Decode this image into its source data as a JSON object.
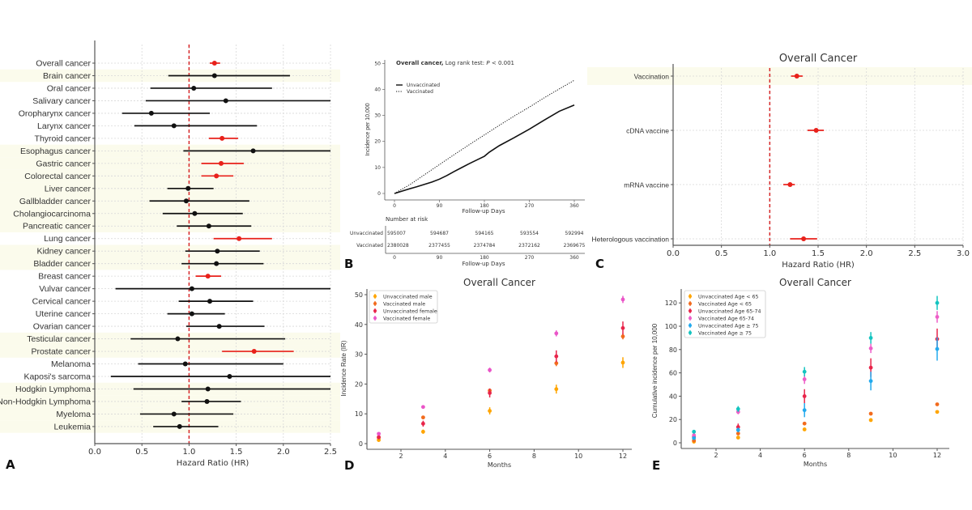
{
  "chart_data": [
    {
      "type": "forest",
      "panel_label": "A",
      "xlabel": "Hazard Ratio (HR)",
      "xlim": [
        0,
        2.5
      ],
      "xticks": [
        0,
        0.5,
        1.0,
        1.5,
        2.0,
        2.5
      ],
      "xtick_labels": [
        "0.0",
        "0.5",
        "1.0",
        "1.5",
        "2.0",
        "2.5"
      ],
      "reference_line": 1.0,
      "grid": true,
      "colors": {
        "significant": "#e8211b",
        "non_significant": "#111111",
        "reference": "#d62728",
        "shade": "#fbfbec"
      },
      "rows": [
        {
          "label": "Overall cancer",
          "hr": 1.27,
          "lo": 1.22,
          "hi": 1.33,
          "significant": true,
          "shaded": false
        },
        {
          "label": "Brain cancer",
          "hr": 1.27,
          "lo": 0.78,
          "hi": 2.07,
          "significant": false,
          "shaded": true
        },
        {
          "label": "Oral cancer",
          "hr": 1.05,
          "lo": 0.59,
          "hi": 1.88,
          "significant": false,
          "shaded": false
        },
        {
          "label": "Salivary cancer",
          "hr": 1.39,
          "lo": 0.54,
          "hi": 2.5,
          "significant": false,
          "shaded": false
        },
        {
          "label": "Oropharynx cancer",
          "hr": 0.6,
          "lo": 0.29,
          "hi": 1.22,
          "significant": false,
          "shaded": false
        },
        {
          "label": "Larynx cancer",
          "hr": 0.84,
          "lo": 0.42,
          "hi": 1.72,
          "significant": false,
          "shaded": false
        },
        {
          "label": "Thyroid cancer",
          "hr": 1.35,
          "lo": 1.21,
          "hi": 1.52,
          "significant": true,
          "shaded": false
        },
        {
          "label": "Esophagus cancer",
          "hr": 1.68,
          "lo": 0.94,
          "hi": 2.5,
          "significant": false,
          "shaded": true
        },
        {
          "label": "Gastric cancer",
          "hr": 1.34,
          "lo": 1.13,
          "hi": 1.58,
          "significant": true,
          "shaded": true
        },
        {
          "label": "Colorectal cancer",
          "hr": 1.29,
          "lo": 1.13,
          "hi": 1.47,
          "significant": true,
          "shaded": true
        },
        {
          "label": "Liver cancer",
          "hr": 0.99,
          "lo": 0.77,
          "hi": 1.26,
          "significant": false,
          "shaded": true
        },
        {
          "label": "Gallbladder cancer",
          "hr": 0.97,
          "lo": 0.58,
          "hi": 1.64,
          "significant": false,
          "shaded": true
        },
        {
          "label": "Cholangiocarcinoma",
          "hr": 1.06,
          "lo": 0.72,
          "hi": 1.57,
          "significant": false,
          "shaded": true
        },
        {
          "label": "Pancreatic cancer",
          "hr": 1.21,
          "lo": 0.87,
          "hi": 1.66,
          "significant": false,
          "shaded": true
        },
        {
          "label": "Lung cancer",
          "hr": 1.53,
          "lo": 1.26,
          "hi": 1.88,
          "significant": true,
          "shaded": false
        },
        {
          "label": "Kidney cancer",
          "hr": 1.3,
          "lo": 0.96,
          "hi": 1.75,
          "significant": false,
          "shaded": true
        },
        {
          "label": "Bladder cancer",
          "hr": 1.29,
          "lo": 0.92,
          "hi": 1.79,
          "significant": false,
          "shaded": true
        },
        {
          "label": "Breast cancer",
          "hr": 1.2,
          "lo": 1.07,
          "hi": 1.34,
          "significant": true,
          "shaded": false
        },
        {
          "label": "Vulvar cancer",
          "hr": 1.03,
          "lo": 0.22,
          "hi": 2.5,
          "significant": false,
          "shaded": false
        },
        {
          "label": "Cervical cancer",
          "hr": 1.22,
          "lo": 0.89,
          "hi": 1.68,
          "significant": false,
          "shaded": false
        },
        {
          "label": "Uterine cancer",
          "hr": 1.03,
          "lo": 0.77,
          "hi": 1.38,
          "significant": false,
          "shaded": false
        },
        {
          "label": "Ovarian cancer",
          "hr": 1.32,
          "lo": 0.97,
          "hi": 1.8,
          "significant": false,
          "shaded": false
        },
        {
          "label": "Testicular cancer",
          "hr": 0.88,
          "lo": 0.38,
          "hi": 2.02,
          "significant": false,
          "shaded": true
        },
        {
          "label": "Prostate cancer",
          "hr": 1.69,
          "lo": 1.35,
          "hi": 2.11,
          "significant": true,
          "shaded": true
        },
        {
          "label": "Melanoma",
          "hr": 0.96,
          "lo": 0.46,
          "hi": 2.0,
          "significant": false,
          "shaded": false
        },
        {
          "label": "Kaposi's sarcoma",
          "hr": 1.43,
          "lo": 0.17,
          "hi": 2.5,
          "significant": false,
          "shaded": false
        },
        {
          "label": "Hodgkin Lymphoma",
          "hr": 1.2,
          "lo": 0.41,
          "hi": 2.5,
          "significant": false,
          "shaded": true
        },
        {
          "label": "Non-Hodgkin Lymphoma",
          "hr": 1.19,
          "lo": 0.92,
          "hi": 1.55,
          "significant": false,
          "shaded": true
        },
        {
          "label": "Myeloma",
          "hr": 0.84,
          "lo": 0.48,
          "hi": 1.47,
          "significant": false,
          "shaded": true
        },
        {
          "label": "Leukemia",
          "hr": 0.9,
          "lo": 0.62,
          "hi": 1.31,
          "significant": false,
          "shaded": true
        }
      ]
    },
    {
      "type": "line",
      "panel_label": "B",
      "title_bold": "Overall cancer,",
      "title_rest": " Log rank test: ",
      "p_symbol": "P",
      "p_value": " < 0.001",
      "xlabel": "Follow-up Days",
      "ylabel": "Incidence per 10,000",
      "xlim": [
        0,
        360
      ],
      "ylim": [
        0,
        50
      ],
      "xticks": [
        0,
        90,
        180,
        270,
        360
      ],
      "xtick_labels": [
        "0",
        "90",
        "180",
        "270",
        "360"
      ],
      "yticks": [
        0,
        10,
        20,
        30,
        40,
        50
      ],
      "ytick_labels": [
        "0",
        "10",
        "20",
        "30",
        "40",
        "50"
      ],
      "legend_position": "top-left",
      "series": [
        {
          "name": "Unvaccinated",
          "style": "solid",
          "x": [
            0,
            15,
            30,
            45,
            60,
            75,
            90,
            105,
            120,
            135,
            150,
            165,
            180,
            190,
            210,
            240,
            270,
            300,
            330,
            360
          ],
          "y": [
            0,
            0.9,
            1.8,
            2.6,
            3.5,
            4.4,
            5.5,
            6.9,
            8.5,
            10.0,
            11.5,
            12.9,
            14.3,
            15.9,
            18.4,
            21.5,
            24.7,
            28.2,
            31.6,
            34.0
          ]
        },
        {
          "name": "Vaccinated",
          "style": "dotted",
          "x": [
            0,
            30,
            60,
            90,
            120,
            150,
            180,
            210,
            240,
            270,
            300,
            330,
            360
          ],
          "y": [
            0,
            3.3,
            7.2,
            11.1,
            15.0,
            18.8,
            22.5,
            26.2,
            29.8,
            33.2,
            36.8,
            40.2,
            43.5
          ]
        }
      ],
      "risk_table": {
        "title": "Number at risk",
        "xlabel": "Follow-up Days",
        "rows": [
          {
            "label": "Unvaccinated",
            "values": [
              "595007",
              "594687",
              "594165",
              "593554",
              "592994"
            ]
          },
          {
            "label": "Vaccinated",
            "values": [
              "2380028",
              "2377455",
              "2374784",
              "2372162",
              "2369675"
            ]
          }
        ]
      }
    },
    {
      "type": "forest",
      "panel_label": "C",
      "title": "Overall Cancer",
      "xlabel": "Hazard Ratio (HR)",
      "xlim": [
        0,
        3.0
      ],
      "xticks": [
        0,
        0.5,
        1.0,
        1.5,
        2.0,
        2.5,
        3.0
      ],
      "xtick_labels": [
        "0.0",
        "0.5",
        "1.0",
        "1.5",
        "2.0",
        "2.5",
        "3.0"
      ],
      "reference_line": 1.0,
      "grid": true,
      "colors": {
        "significant": "#e8211b",
        "reference": "#d62728",
        "shade": "#fbfbec"
      },
      "rows": [
        {
          "label": "Vaccination",
          "hr": 1.28,
          "lo": 1.22,
          "hi": 1.34,
          "significant": true,
          "shaded": true
        },
        {
          "label": "cDNA vaccine",
          "hr": 1.48,
          "lo": 1.39,
          "hi": 1.56,
          "significant": true,
          "shaded": false
        },
        {
          "label": "mRNA vaccine",
          "hr": 1.21,
          "lo": 1.14,
          "hi": 1.26,
          "significant": true,
          "shaded": false
        },
        {
          "label": "Heterologous vaccination",
          "hr": 1.35,
          "lo": 1.21,
          "hi": 1.49,
          "significant": true,
          "shaded": false
        }
      ]
    },
    {
      "type": "scatter",
      "panel_label": "D",
      "title": "Overall Cancer",
      "xlabel": "Months",
      "ylabel": "Incidence Rate (IR)",
      "xlim": [
        0.4,
        12.8
      ],
      "ylim": [
        -2,
        52
      ],
      "xticks": [
        2,
        4,
        6,
        8,
        10,
        12
      ],
      "xtick_labels": [
        "2",
        "4",
        "6",
        "8",
        "10",
        "12"
      ],
      "yticks": [
        0,
        10,
        20,
        30,
        40,
        50
      ],
      "ytick_labels": [
        "0",
        "10",
        "20",
        "30",
        "40",
        "50"
      ],
      "legend_position": "top-left",
      "x": [
        1,
        3,
        6,
        9,
        12
      ],
      "series": [
        {
          "name": "Unvaccinated male",
          "color": "#ffa500",
          "values": [
            1.2,
            4.0,
            11.0,
            18.3,
            27.2
          ],
          "errors": [
            0.5,
            0.7,
            1.2,
            1.5,
            1.8
          ]
        },
        {
          "name": "Vaccinated male",
          "color": "#f26b1d",
          "values": [
            2.0,
            8.8,
            17.8,
            27.0,
            36.0
          ],
          "errors": [
            0.3,
            0.5,
            0.7,
            1.0,
            1.0
          ]
        },
        {
          "name": "Unvaccinated female",
          "color": "#e8254a",
          "values": [
            2.2,
            6.7,
            17.0,
            29.3,
            38.8
          ],
          "errors": [
            0.6,
            1.0,
            1.5,
            2.0,
            2.2
          ]
        },
        {
          "name": "Vaccinated female",
          "color": "#ea55c8",
          "values": [
            3.3,
            12.3,
            24.7,
            37.0,
            48.4
          ],
          "errors": [
            0.3,
            0.5,
            0.8,
            1.0,
            1.2
          ]
        }
      ]
    },
    {
      "type": "scatter",
      "panel_label": "E",
      "title": "Overall Cancer",
      "xlabel": "Months",
      "ylabel": "Cumulative incidence per 10,000",
      "xlim": [
        0.4,
        12.8
      ],
      "ylim": [
        -5,
        130
      ],
      "xticks": [
        2,
        4,
        6,
        8,
        10,
        12
      ],
      "xtick_labels": [
        "2",
        "4",
        "6",
        "8",
        "10",
        "12"
      ],
      "yticks": [
        0,
        20,
        40,
        60,
        80,
        100,
        120
      ],
      "ytick_labels": [
        "0",
        "20",
        "40",
        "60",
        "80",
        "100",
        "120"
      ],
      "legend_position": "top-left",
      "x": [
        1,
        3,
        6,
        9,
        12
      ],
      "series": [
        {
          "name": "Unvaccinated Age < 65",
          "color": "#ffa500",
          "values": [
            1.0,
            4.5,
            11.5,
            19.5,
            26.5
          ],
          "errors": [
            0.3,
            0.5,
            0.7,
            0.8,
            1.0
          ]
        },
        {
          "name": "Vaccinated Age < 65",
          "color": "#f26b1d",
          "values": [
            2.0,
            8.0,
            16.5,
            25.0,
            33.0
          ],
          "errors": [
            0.3,
            0.5,
            0.7,
            0.8,
            1.0
          ]
        },
        {
          "name": "Unvaccinated Age 65-74",
          "color": "#e8254a",
          "values": [
            5.0,
            13.5,
            40.0,
            64.5,
            89.0
          ],
          "errors": [
            1.0,
            3.0,
            6.0,
            8.0,
            9.0
          ]
        },
        {
          "name": "Vaccinated Age 65-74",
          "color": "#ee5ec8",
          "values": [
            6.5,
            26.5,
            54.5,
            81.0,
            108.0
          ],
          "errors": [
            1.0,
            2.0,
            4.0,
            4.0,
            5.0
          ]
        },
        {
          "name": "Unvaccinated Age ≥ 75",
          "color": "#22aaee",
          "values": [
            4.0,
            11.0,
            28.0,
            53.0,
            80.5
          ],
          "errors": [
            1.0,
            2.0,
            6.0,
            8.0,
            10.0
          ]
        },
        {
          "name": "Vaccinated Age ≥ 75",
          "color": "#14c4c0",
          "values": [
            9.5,
            29.0,
            61.0,
            90.0,
            120.0
          ],
          "errors": [
            1.0,
            2.5,
            4.0,
            5.0,
            6.0
          ]
        }
      ]
    }
  ]
}
